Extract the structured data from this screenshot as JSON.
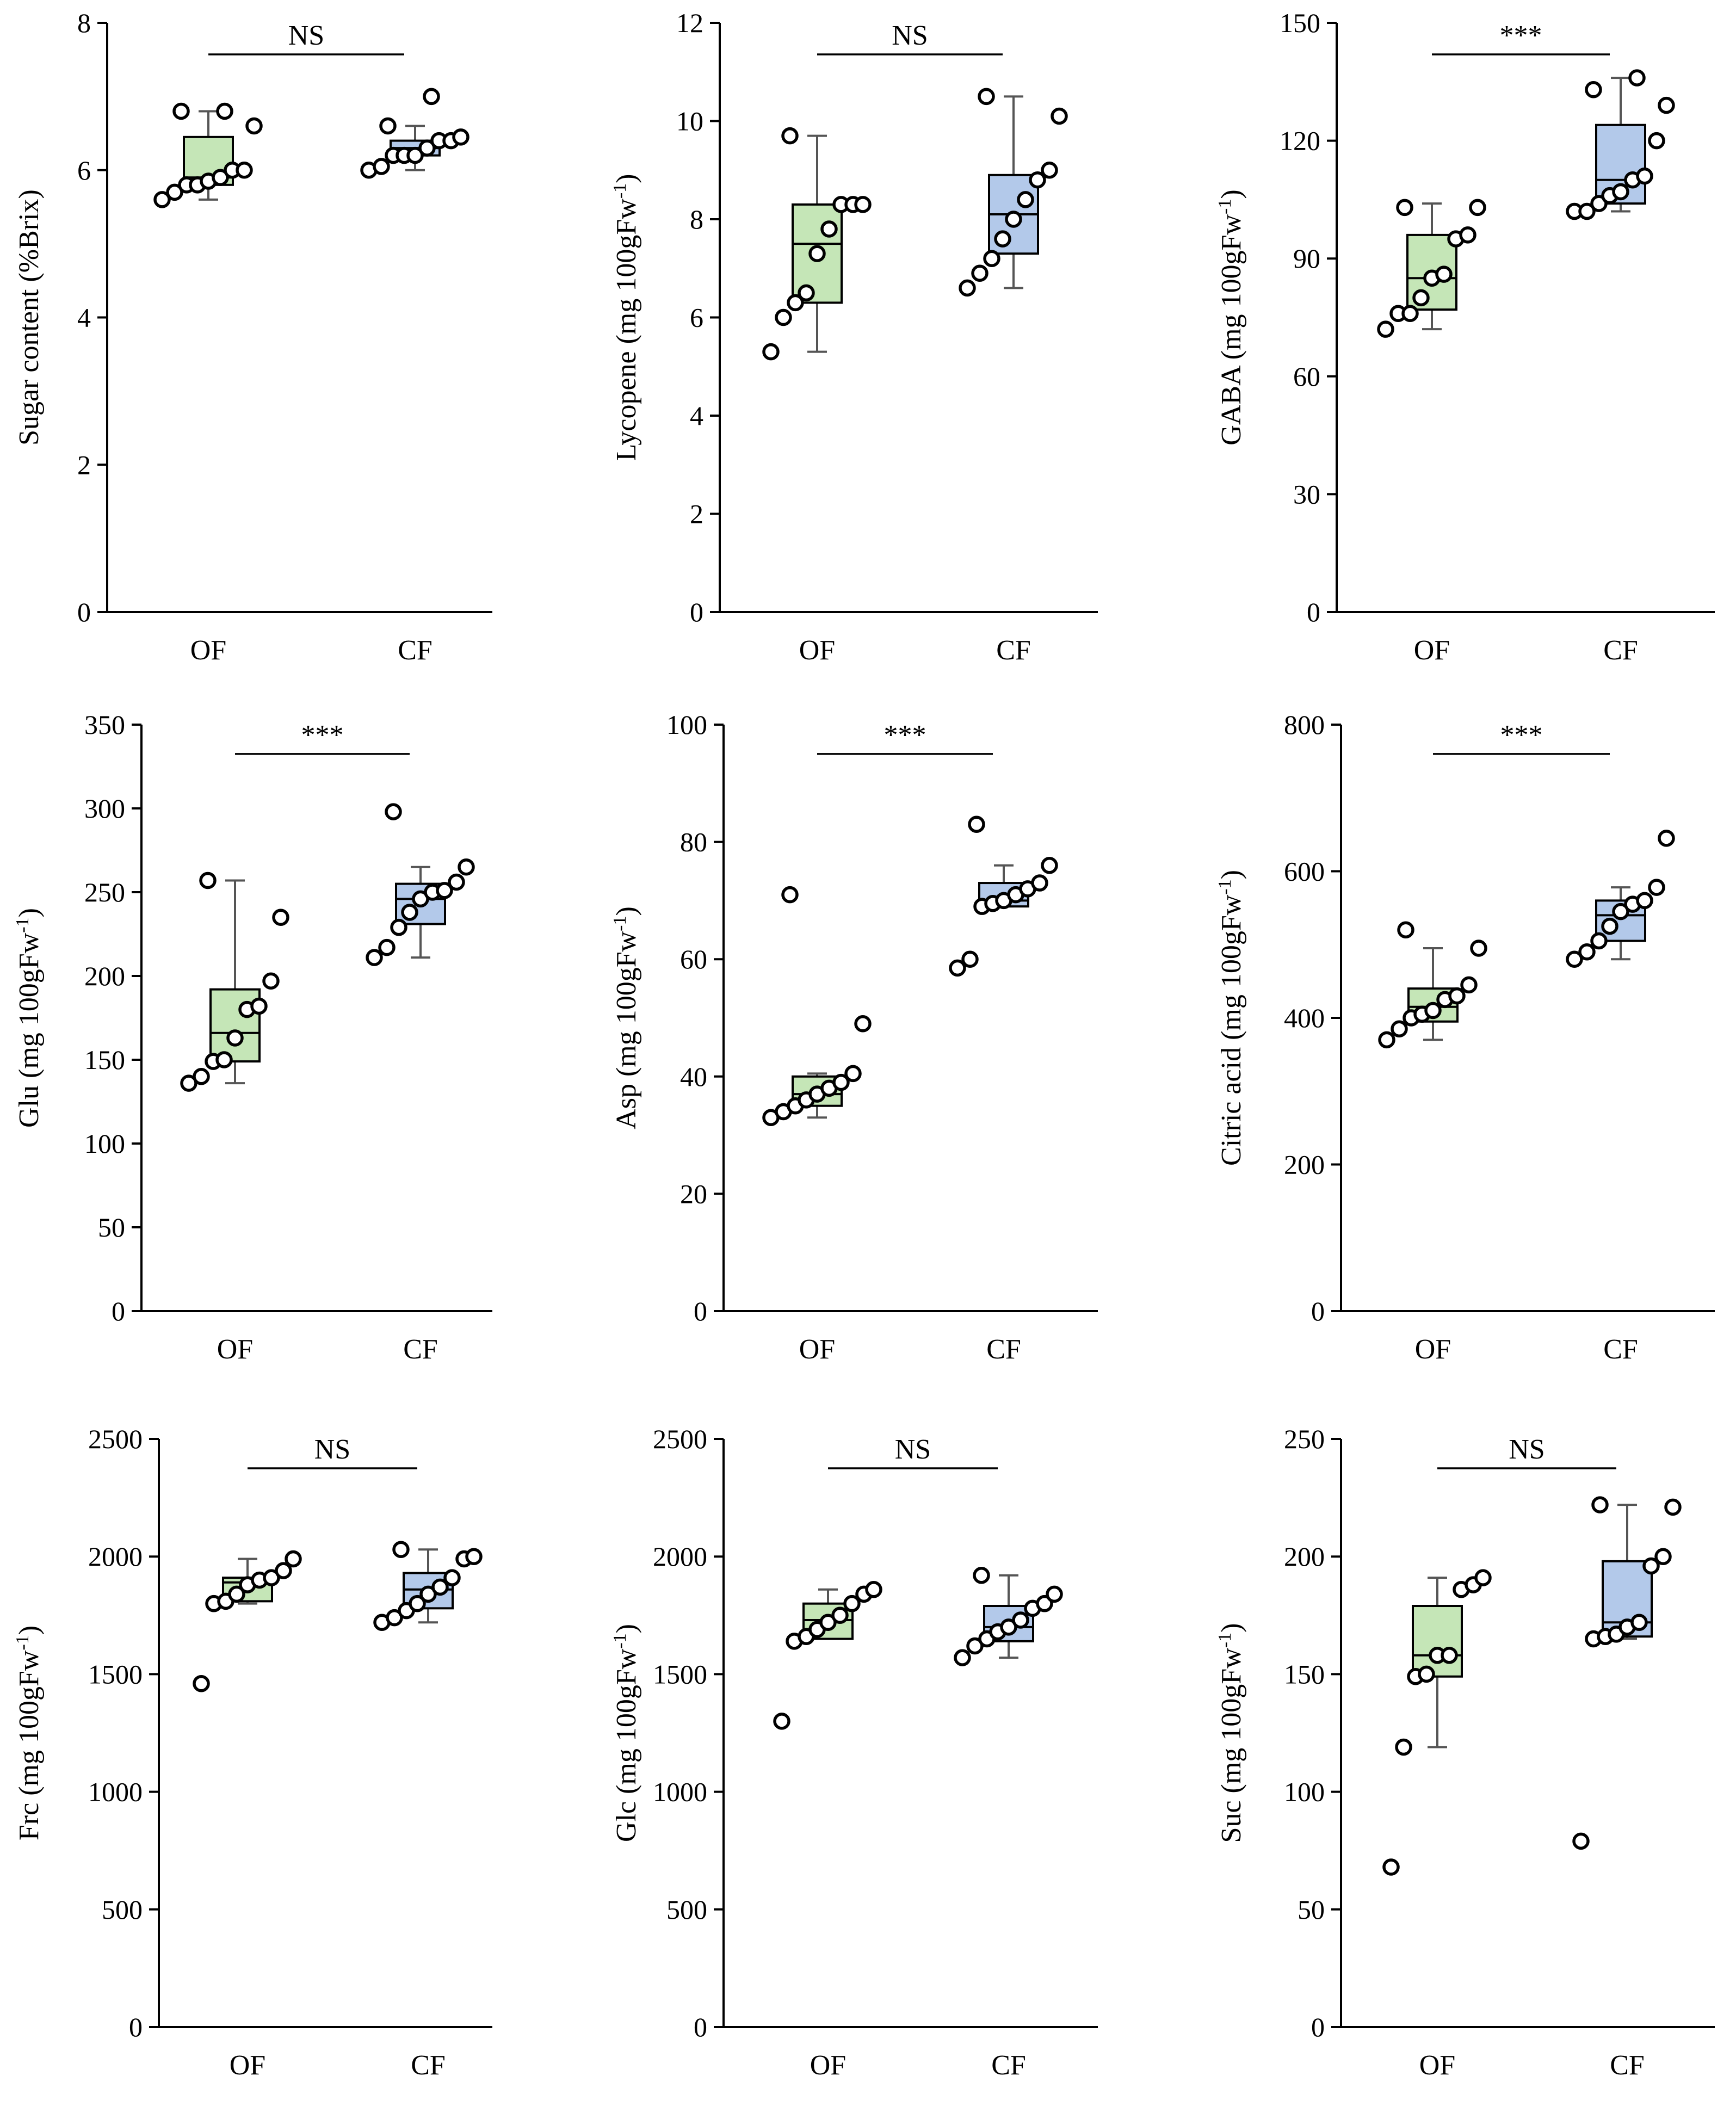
{
  "colors": {
    "OF": "#c5e6b7",
    "CF": "#b3c9ea",
    "cat_label_muted": "#666666"
  },
  "chart_data": [
    {
      "type": "box",
      "ylabel": "Sugar content (%Brix)",
      "ylim": [
        0,
        8
      ],
      "yticks": [
        0,
        2,
        4,
        6,
        8
      ],
      "categories": [
        "OF",
        "CF"
      ],
      "significance": "NS",
      "groups": [
        {
          "name": "OF",
          "min": 5.6,
          "q1": 5.8,
          "median": 5.9,
          "q3": 6.45,
          "max": 6.8,
          "points": [
            5.6,
            5.7,
            5.8,
            5.8,
            5.85,
            5.9,
            6.0,
            6.0,
            6.6,
            6.8,
            6.8
          ]
        },
        {
          "name": "CF",
          "min": 6.0,
          "q1": 6.2,
          "median": 6.3,
          "q3": 6.4,
          "max": 6.6,
          "points": [
            6.0,
            6.05,
            6.2,
            6.2,
            6.2,
            6.3,
            6.4,
            6.4,
            6.45,
            6.6,
            7.0
          ]
        }
      ]
    },
    {
      "type": "box",
      "ylabel": "Lycopene (mg 100gFw⁻¹)",
      "ylim": [
        0,
        12
      ],
      "yticks": [
        0,
        2,
        4,
        6,
        8,
        10,
        12
      ],
      "categories": [
        "OF",
        "CF"
      ],
      "significance": "NS",
      "category_color": "muted",
      "groups": [
        {
          "name": "OF",
          "min": 5.3,
          "q1": 6.3,
          "median": 7.5,
          "q3": 8.3,
          "max": 9.7,
          "points": [
            5.3,
            6.0,
            6.3,
            6.5,
            7.3,
            7.8,
            8.3,
            8.3,
            8.3,
            9.7
          ]
        },
        {
          "name": "CF",
          "min": 6.6,
          "q1": 7.3,
          "median": 8.1,
          "q3": 8.9,
          "max": 10.5,
          "points": [
            6.6,
            6.9,
            7.2,
            7.6,
            8.0,
            8.4,
            8.8,
            9.0,
            10.1,
            10.5
          ]
        }
      ]
    },
    {
      "type": "box",
      "ylabel": "GABA (mg 100gFw⁻¹)",
      "ylim": [
        0,
        150
      ],
      "yticks": [
        0,
        30,
        60,
        90,
        120,
        150
      ],
      "categories": [
        "OF",
        "CF"
      ],
      "significance": "***",
      "groups": [
        {
          "name": "OF",
          "min": 72,
          "q1": 77,
          "median": 85,
          "q3": 96,
          "max": 104,
          "points": [
            72,
            76,
            76,
            80,
            85,
            86,
            95,
            96,
            103,
            103
          ]
        },
        {
          "name": "CF",
          "min": 102,
          "q1": 104,
          "median": 110,
          "q3": 124,
          "max": 136,
          "points": [
            102,
            102,
            104,
            106,
            107,
            110,
            111,
            120,
            129,
            133,
            136
          ]
        }
      ]
    },
    {
      "type": "box",
      "ylabel": "Glu (mg 100gFw⁻¹)",
      "ylim": [
        0,
        350
      ],
      "yticks": [
        0,
        50,
        100,
        150,
        200,
        250,
        300,
        350
      ],
      "categories": [
        "OF",
        "CF"
      ],
      "significance": "***",
      "groups": [
        {
          "name": "OF",
          "min": 136,
          "q1": 149,
          "median": 166,
          "q3": 192,
          "max": 257,
          "points": [
            136,
            140,
            149,
            150,
            163,
            180,
            182,
            197,
            235,
            257
          ]
        },
        {
          "name": "CF",
          "min": 211,
          "q1": 231,
          "median": 246,
          "q3": 255,
          "max": 265,
          "points": [
            211,
            217,
            229,
            238,
            246,
            250,
            251,
            256,
            265,
            298
          ]
        }
      ]
    },
    {
      "type": "box",
      "ylabel": "Asp (mg 100gFw⁻¹)",
      "ylim": [
        0,
        100
      ],
      "yticks": [
        0,
        20,
        40,
        60,
        80,
        100
      ],
      "categories": [
        "OF",
        "CF"
      ],
      "significance": "***",
      "groups": [
        {
          "name": "OF",
          "min": 33,
          "q1": 35,
          "median": 37,
          "q3": 40,
          "max": 40.5,
          "points": [
            33,
            34,
            35,
            36,
            37,
            38,
            39,
            40.5,
            49,
            71
          ]
        },
        {
          "name": "CF",
          "min": 69,
          "q1": 69,
          "median": 70,
          "q3": 73,
          "max": 76,
          "points": [
            58.5,
            60,
            69,
            69.5,
            70,
            71,
            72,
            73,
            76,
            83
          ]
        }
      ]
    },
    {
      "type": "box",
      "ylabel": "Citric acid (mg 100gFw⁻¹)",
      "ylim": [
        0,
        800
      ],
      "yticks": [
        0,
        200,
        400,
        600,
        800
      ],
      "categories": [
        "OF",
        "CF"
      ],
      "significance": "***",
      "groups": [
        {
          "name": "OF",
          "min": 370,
          "q1": 395,
          "median": 415,
          "q3": 440,
          "max": 495,
          "points": [
            370,
            385,
            400,
            405,
            410,
            425,
            430,
            445,
            495,
            520
          ]
        },
        {
          "name": "CF",
          "min": 480,
          "q1": 505,
          "median": 540,
          "q3": 560,
          "max": 578,
          "points": [
            480,
            490,
            505,
            525,
            545,
            555,
            560,
            578,
            645
          ]
        }
      ]
    },
    {
      "type": "box",
      "ylabel": "Frc (mg 100gFw⁻¹)",
      "ylim": [
        0,
        2500
      ],
      "yticks": [
        0,
        500,
        1000,
        1500,
        2000,
        2500
      ],
      "categories": [
        "OF",
        "CF"
      ],
      "significance": "NS",
      "groups": [
        {
          "name": "OF",
          "min": 1800,
          "q1": 1810,
          "median": 1890,
          "q3": 1910,
          "max": 1990,
          "points": [
            1460,
            1800,
            1810,
            1840,
            1880,
            1900,
            1910,
            1940,
            1990
          ]
        },
        {
          "name": "CF",
          "min": 1720,
          "q1": 1780,
          "median": 1860,
          "q3": 1930,
          "max": 2030,
          "points": [
            1720,
            1740,
            1770,
            1800,
            1840,
            1870,
            1910,
            1990,
            2000,
            2030
          ]
        }
      ]
    },
    {
      "type": "box",
      "ylabel": "Glc (mg 100gFw⁻¹)",
      "ylim": [
        0,
        2500
      ],
      "yticks": [
        0,
        500,
        1000,
        1500,
        2000,
        2500
      ],
      "categories": [
        "OF",
        "CF"
      ],
      "significance": "NS",
      "groups": [
        {
          "name": "OF",
          "min": 1650,
          "q1": 1650,
          "median": 1730,
          "q3": 1800,
          "max": 1860,
          "points": [
            1300,
            1640,
            1660,
            1690,
            1720,
            1750,
            1800,
            1840,
            1860
          ]
        },
        {
          "name": "CF",
          "min": 1570,
          "q1": 1640,
          "median": 1700,
          "q3": 1790,
          "max": 1920,
          "points": [
            1570,
            1620,
            1650,
            1680,
            1700,
            1730,
            1780,
            1800,
            1840,
            1920
          ]
        }
      ]
    },
    {
      "type": "box",
      "ylabel": "Suc (mg 100gFw⁻¹)",
      "ylim": [
        0,
        250
      ],
      "yticks": [
        0,
        50,
        100,
        150,
        200,
        250
      ],
      "categories": [
        "OF",
        "CF"
      ],
      "significance": "NS",
      "groups": [
        {
          "name": "OF",
          "min": 119,
          "q1": 149,
          "median": 158,
          "q3": 179,
          "max": 191,
          "points": [
            68,
            119,
            149,
            150,
            158,
            158,
            186,
            188,
            191
          ]
        },
        {
          "name": "CF",
          "min": 165,
          "q1": 166,
          "median": 172,
          "q3": 198,
          "max": 222,
          "points": [
            79,
            165,
            166,
            167,
            170,
            172,
            196,
            200,
            221,
            222
          ]
        }
      ]
    }
  ]
}
